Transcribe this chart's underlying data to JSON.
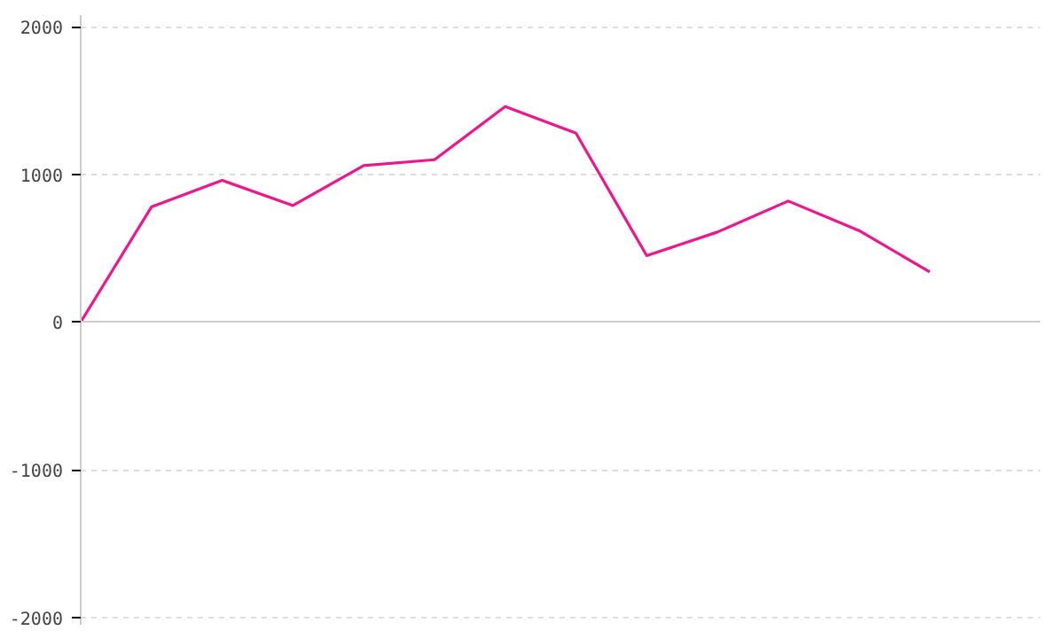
{
  "chart_data": {
    "type": "line",
    "categories": [
      null,
      null,
      null,
      null,
      null,
      null,
      null,
      null,
      null,
      null,
      null,
      null,
      null
    ],
    "series": [
      {
        "color": "#f0158c",
        "values": [
          0,
          780,
          960,
          790,
          1060,
          1100,
          1460,
          1280,
          450,
          610,
          820,
          620,
          340
        ]
      }
    ],
    "ylim": [
      -2050,
      2080
    ],
    "yticks": [
      -2000,
      -1000,
      0,
      1000,
      2000
    ],
    "grid": "y",
    "marker": "none",
    "line_style": "solid"
  }
}
